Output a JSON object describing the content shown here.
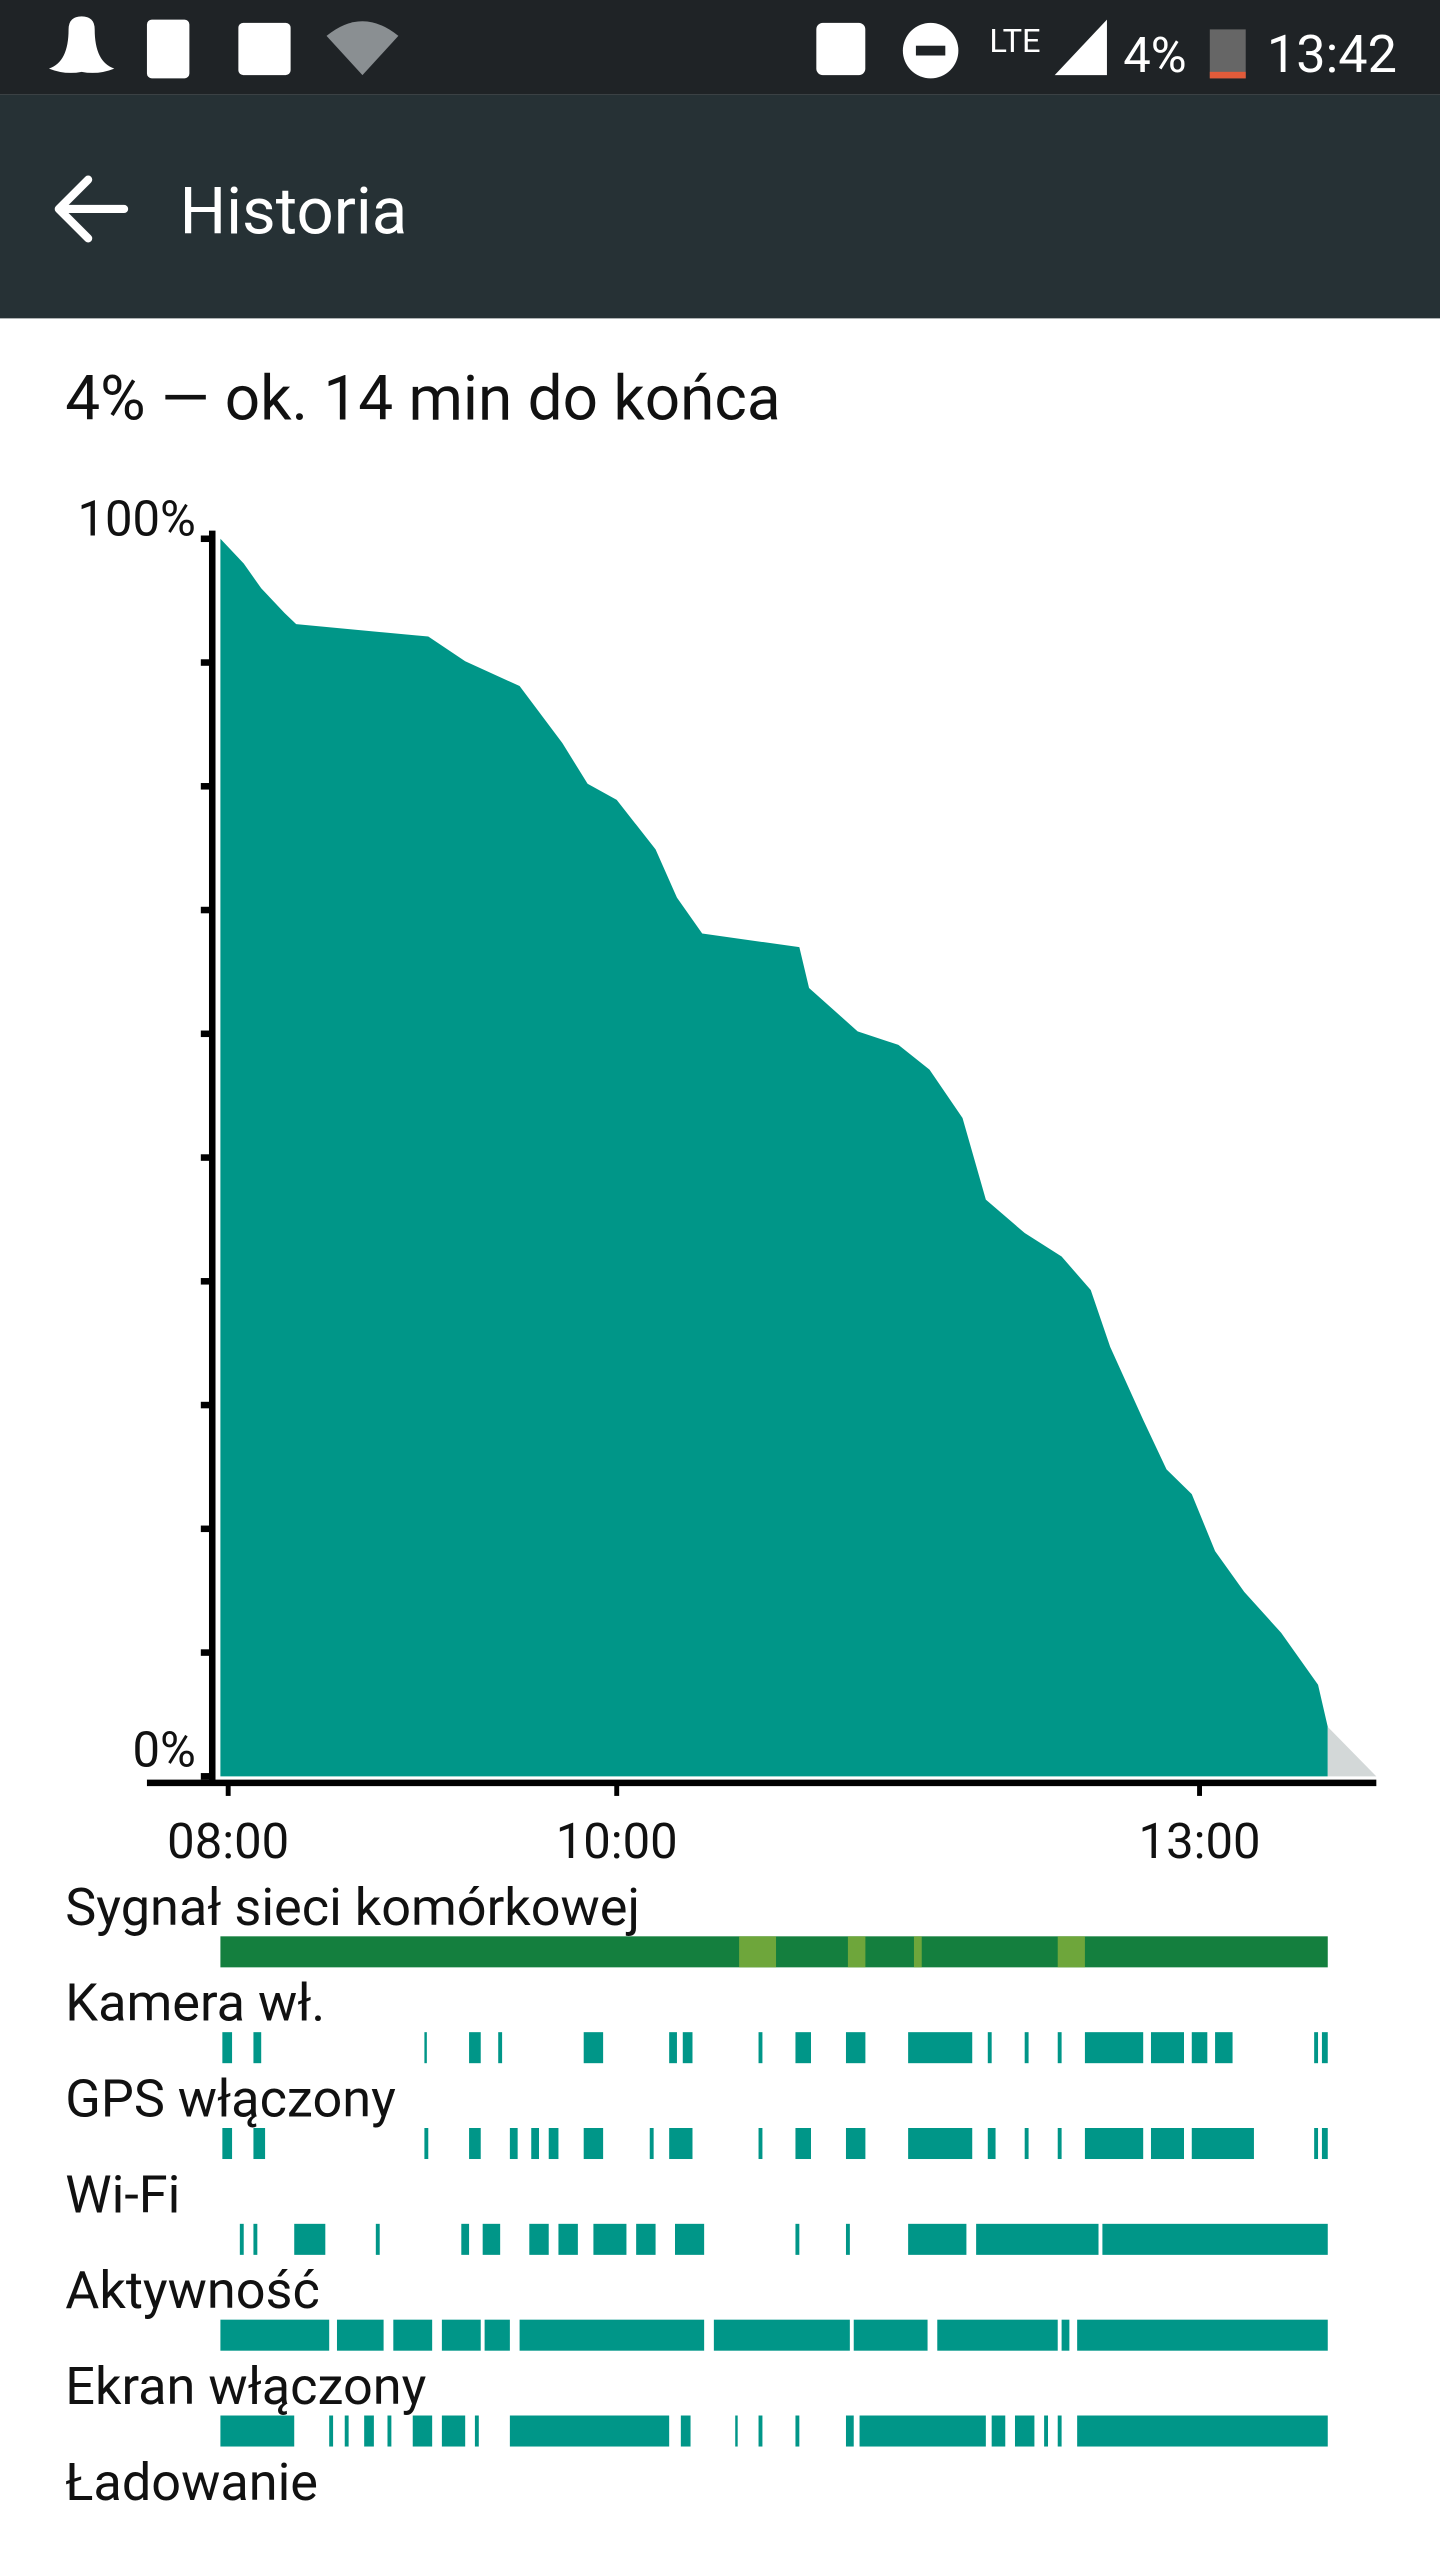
{
  "status_bar": {
    "network": "LTE",
    "battery": "4%",
    "time": "13:42"
  },
  "app_bar": {
    "title": "Historia"
  },
  "summary": "4% — ok. 14 min do końca",
  "chart_data": {
    "type": "area",
    "color": "#009688",
    "x": [
      7.96,
      8.08,
      8.17,
      8.29,
      8.35,
      9.03,
      9.22,
      9.5,
      9.72,
      9.85,
      10.0,
      10.2,
      10.31,
      10.44,
      10.94,
      10.99,
      11.24,
      11.45,
      11.61,
      11.78,
      11.9,
      12.1,
      12.29,
      12.44,
      12.54,
      12.71,
      12.83,
      12.96,
      13.08,
      13.23,
      13.42,
      13.61,
      13.66
    ],
    "values": [
      100,
      98,
      96,
      94,
      93.1,
      92.1,
      90.1,
      88.1,
      83.5,
      80.2,
      78.9,
      74.9,
      71,
      68.1,
      67,
      63.7,
      60.2,
      59.1,
      57.1,
      53.2,
      46.6,
      43.9,
      42,
      39.3,
      34.7,
      28.8,
      24.8,
      22.8,
      18.2,
      14.9,
      11.6,
      7.4,
      4
    ],
    "xlim": [
      7.96,
      13.91
    ],
    "ylim": [
      0,
      100
    ],
    "xticks": [
      {
        "value": 8,
        "label": "08:00"
      },
      {
        "value": 10,
        "label": "10:00"
      },
      {
        "value": 13,
        "label": "13:00"
      }
    ],
    "yticks": [
      {
        "value": 0,
        "label": "0%"
      },
      {
        "value": 100,
        "label": "100%"
      }
    ],
    "yminor_ticks": [
      10,
      20,
      30,
      40,
      50,
      60,
      70,
      80,
      90
    ]
  },
  "timelines": [
    {
      "name": "Sygnał sieci komórkowej",
      "color": "#147f3e",
      "segments": [
        [
          7.96,
          13.66
        ]
      ],
      "color_alt": "#6ea63b",
      "segments_alt": [
        [
          10.63,
          10.82
        ],
        [
          11.19,
          11.28
        ],
        [
          11.53,
          11.57
        ],
        [
          12.27,
          12.41
        ]
      ]
    },
    {
      "name": "Kamera wł.",
      "color": "#009688",
      "segments": [
        [
          7.97,
          8.02
        ],
        [
          8.13,
          8.17
        ],
        [
          9.01,
          9.02
        ],
        [
          9.24,
          9.3
        ],
        [
          9.39,
          9.41
        ],
        [
          9.83,
          9.93
        ],
        [
          10.27,
          10.31
        ],
        [
          10.34,
          10.39
        ],
        [
          10.73,
          10.75
        ],
        [
          10.92,
          11.0
        ],
        [
          11.18,
          11.28
        ],
        [
          11.5,
          11.83
        ],
        [
          11.91,
          11.93
        ],
        [
          12.1,
          12.12
        ],
        [
          12.27,
          12.29
        ],
        [
          12.41,
          12.71
        ],
        [
          12.75,
          12.92
        ],
        [
          12.96,
          13.04
        ],
        [
          13.08,
          13.17
        ],
        [
          13.59,
          13.61
        ],
        [
          13.63,
          13.66
        ]
      ]
    },
    {
      "name": "GPS włączony",
      "color": "#009688",
      "segments": [
        [
          7.97,
          8.02
        ],
        [
          8.13,
          8.19
        ],
        [
          9.01,
          9.03
        ],
        [
          9.24,
          9.3
        ],
        [
          9.45,
          9.49
        ],
        [
          9.56,
          9.6
        ],
        [
          9.65,
          9.7
        ],
        [
          9.83,
          9.93
        ],
        [
          10.17,
          10.19
        ],
        [
          10.27,
          10.39
        ],
        [
          10.73,
          10.75
        ],
        [
          10.92,
          11.0
        ],
        [
          11.18,
          11.28
        ],
        [
          11.5,
          11.83
        ],
        [
          11.91,
          11.95
        ],
        [
          12.1,
          12.12
        ],
        [
          12.27,
          12.29
        ],
        [
          12.41,
          12.71
        ],
        [
          12.75,
          12.92
        ],
        [
          12.96,
          13.28
        ],
        [
          13.59,
          13.61
        ],
        [
          13.63,
          13.66
        ]
      ]
    },
    {
      "name": "Wi-Fi",
      "color": "#009688",
      "segments": [
        [
          8.06,
          8.08
        ],
        [
          8.13,
          8.15
        ],
        [
          8.34,
          8.5
        ],
        [
          8.76,
          8.78
        ],
        [
          9.2,
          9.24
        ],
        [
          9.31,
          9.4
        ],
        [
          9.55,
          9.65
        ],
        [
          9.7,
          9.8
        ],
        [
          9.88,
          10.05
        ],
        [
          10.1,
          10.2
        ],
        [
          10.3,
          10.45
        ],
        [
          10.92,
          10.94
        ],
        [
          11.18,
          11.2
        ],
        [
          11.5,
          11.8
        ],
        [
          11.85,
          12.48
        ],
        [
          12.5,
          13.66
        ]
      ]
    },
    {
      "name": "Aktywność",
      "color": "#009688",
      "segments": [
        [
          7.96,
          8.52
        ],
        [
          8.56,
          8.8
        ],
        [
          8.85,
          9.05
        ],
        [
          9.1,
          9.3
        ],
        [
          9.32,
          9.45
        ],
        [
          9.5,
          10.45
        ],
        [
          10.5,
          11.2
        ],
        [
          11.22,
          11.6
        ],
        [
          11.65,
          12.27
        ],
        [
          12.29,
          12.33
        ],
        [
          12.37,
          13.66
        ]
      ]
    },
    {
      "name": "Ekran włączony",
      "color": "#009688",
      "segments": [
        [
          7.96,
          8.34
        ],
        [
          8.52,
          8.54
        ],
        [
          8.6,
          8.62
        ],
        [
          8.7,
          8.75
        ],
        [
          8.82,
          8.84
        ],
        [
          8.95,
          9.05
        ],
        [
          9.1,
          9.22
        ],
        [
          9.27,
          9.29
        ],
        [
          9.45,
          10.27
        ],
        [
          10.33,
          10.38
        ],
        [
          10.61,
          10.62
        ],
        [
          10.73,
          10.75
        ],
        [
          10.92,
          10.94
        ],
        [
          11.18,
          11.22
        ],
        [
          11.25,
          11.9
        ],
        [
          11.93,
          12.0
        ],
        [
          12.05,
          12.15
        ],
        [
          12.2,
          12.22
        ],
        [
          12.27,
          12.29
        ],
        [
          12.37,
          13.66
        ]
      ]
    },
    {
      "name": "Ładowanie",
      "color": "#009688",
      "segments": []
    }
  ]
}
